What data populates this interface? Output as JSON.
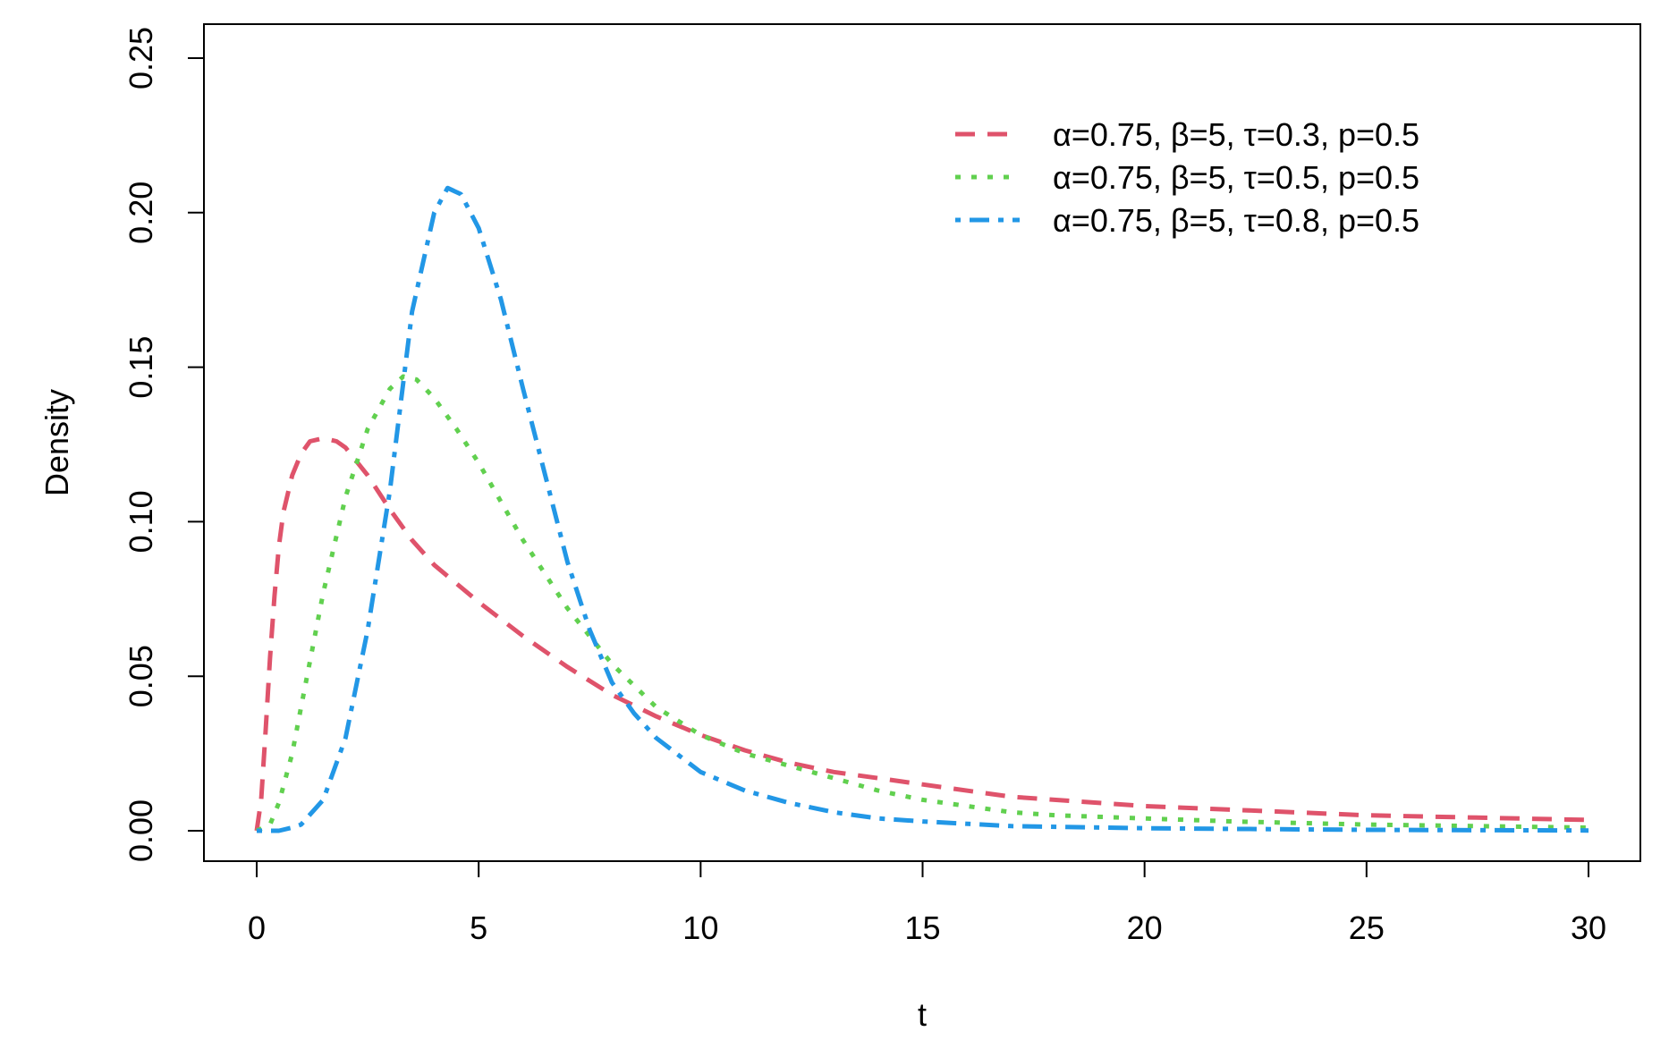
{
  "chart_data": {
    "type": "line",
    "title": "",
    "xlabel": "t",
    "ylabel": "Density",
    "xlim": [
      0,
      30
    ],
    "ylim": [
      0,
      0.25
    ],
    "x_ticks": [
      "0",
      "5",
      "10",
      "15",
      "20",
      "25",
      "30"
    ],
    "y_ticks": [
      "0.00",
      "0.05",
      "0.10",
      "0.15",
      "0.20",
      "0.25"
    ],
    "grid": false,
    "legend_position": "top-right",
    "series": [
      {
        "name": "α=0.75, β=5, τ=0.3, p=0.5",
        "color": "#DF536B",
        "dash": "dashed",
        "points": [
          [
            0,
            0
          ],
          [
            0.1,
            0.01
          ],
          [
            0.2,
            0.032
          ],
          [
            0.3,
            0.056
          ],
          [
            0.4,
            0.076
          ],
          [
            0.5,
            0.092
          ],
          [
            0.6,
            0.103
          ],
          [
            0.8,
            0.115
          ],
          [
            1.0,
            0.122
          ],
          [
            1.2,
            0.126
          ],
          [
            1.5,
            0.127
          ],
          [
            1.8,
            0.126
          ],
          [
            2.0,
            0.124
          ],
          [
            2.5,
            0.115
          ],
          [
            3.0,
            0.104
          ],
          [
            3.5,
            0.094
          ],
          [
            4.0,
            0.086
          ],
          [
            5.0,
            0.074
          ],
          [
            6.0,
            0.063
          ],
          [
            7.0,
            0.053
          ],
          [
            8.0,
            0.044
          ],
          [
            9.0,
            0.037
          ],
          [
            10.0,
            0.031
          ],
          [
            11.0,
            0.026
          ],
          [
            12.0,
            0.022
          ],
          [
            13.0,
            0.019
          ],
          [
            14.0,
            0.017
          ],
          [
            15.0,
            0.015
          ],
          [
            17.0,
            0.011
          ],
          [
            20.0,
            0.008
          ],
          [
            25.0,
            0.005
          ],
          [
            30.0,
            0.0035
          ]
        ]
      },
      {
        "name": "α=0.75, β=5, τ=0.5, p=0.5",
        "color": "#61D04F",
        "dash": "dotted",
        "points": [
          [
            0,
            0
          ],
          [
            0.3,
            0.002
          ],
          [
            0.5,
            0.009
          ],
          [
            0.8,
            0.025
          ],
          [
            1.0,
            0.04
          ],
          [
            1.5,
            0.077
          ],
          [
            2.0,
            0.108
          ],
          [
            2.5,
            0.13
          ],
          [
            3.0,
            0.143
          ],
          [
            3.3,
            0.147
          ],
          [
            3.6,
            0.146
          ],
          [
            4.0,
            0.14
          ],
          [
            4.5,
            0.13
          ],
          [
            5.0,
            0.119
          ],
          [
            6.0,
            0.094
          ],
          [
            7.0,
            0.072
          ],
          [
            8.0,
            0.054
          ],
          [
            9.0,
            0.04
          ],
          [
            10.0,
            0.031
          ],
          [
            11.0,
            0.025
          ],
          [
            12.0,
            0.021
          ],
          [
            13.0,
            0.017
          ],
          [
            14.0,
            0.013
          ],
          [
            15.0,
            0.01
          ],
          [
            16.0,
            0.008
          ],
          [
            17.0,
            0.006
          ],
          [
            18.0,
            0.005
          ],
          [
            20.0,
            0.004
          ],
          [
            22.0,
            0.003
          ],
          [
            25.0,
            0.002
          ],
          [
            30.0,
            0.001
          ]
        ]
      },
      {
        "name": "α=0.75, β=5, τ=0.8, p=0.5",
        "color": "#2297E6",
        "dash": "dotdash",
        "points": [
          [
            0,
            0
          ],
          [
            0.5,
            0
          ],
          [
            0.8,
            0.001
          ],
          [
            1.0,
            0.002
          ],
          [
            1.5,
            0.01
          ],
          [
            2.0,
            0.03
          ],
          [
            2.5,
            0.065
          ],
          [
            3.0,
            0.11
          ],
          [
            3.5,
            0.168
          ],
          [
            4.0,
            0.2
          ],
          [
            4.3,
            0.208
          ],
          [
            4.6,
            0.206
          ],
          [
            5.0,
            0.195
          ],
          [
            5.5,
            0.172
          ],
          [
            6.0,
            0.143
          ],
          [
            6.5,
            0.115
          ],
          [
            7.0,
            0.087
          ],
          [
            7.5,
            0.065
          ],
          [
            8.0,
            0.048
          ],
          [
            8.5,
            0.038
          ],
          [
            9.0,
            0.03
          ],
          [
            10.0,
            0.019
          ],
          [
            11.0,
            0.013
          ],
          [
            12.0,
            0.009
          ],
          [
            13.0,
            0.006
          ],
          [
            14.0,
            0.004
          ],
          [
            15.0,
            0.003
          ],
          [
            17.0,
            0.0015
          ],
          [
            20.0,
            0.0008
          ],
          [
            25.0,
            0.0003
          ],
          [
            30.0,
            0.0001
          ]
        ]
      }
    ]
  }
}
